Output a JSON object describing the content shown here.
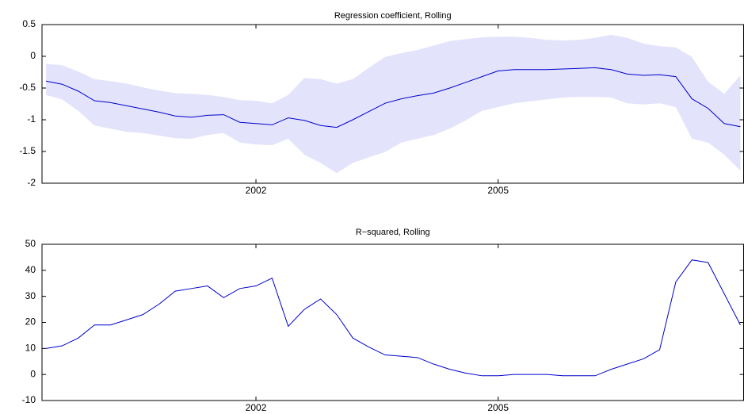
{
  "chart_data": [
    {
      "type": "band-line",
      "title": "Regression coefficient, Rolling",
      "x": [
        1999.4,
        1999.6,
        1999.8,
        2000.0,
        2000.2,
        2000.4,
        2000.6,
        2000.8,
        2001.0,
        2001.2,
        2001.4,
        2001.6,
        2001.8,
        2002.0,
        2002.2,
        2002.4,
        2002.6,
        2002.8,
        2003.0,
        2003.2,
        2003.4,
        2003.6,
        2003.8,
        2004.0,
        2004.2,
        2004.4,
        2004.6,
        2004.8,
        2005.0,
        2005.2,
        2005.4,
        2005.6,
        2005.8,
        2006.0,
        2006.2,
        2006.4,
        2006.6,
        2006.8,
        2007.0,
        2007.2,
        2007.4,
        2007.6,
        2007.8,
        2008.0
      ],
      "series": [
        {
          "color": "#0000cc",
          "values": [
            -0.39,
            -0.44,
            -0.55,
            -0.7,
            -0.73,
            -0.78,
            -0.83,
            -0.88,
            -0.94,
            -0.96,
            -0.93,
            -0.92,
            -1.04,
            -1.06,
            -1.08,
            -0.97,
            -1.01,
            -1.09,
            -1.12,
            -1.0,
            -0.87,
            -0.74,
            -0.67,
            -0.62,
            -0.58,
            -0.5,
            -0.41,
            -0.32,
            -0.23,
            -0.21,
            -0.21,
            -0.21,
            -0.2,
            -0.19,
            -0.18,
            -0.21,
            -0.28,
            -0.3,
            -0.29,
            -0.32,
            -0.67,
            -0.82,
            -1.06,
            -1.11
          ]
        }
      ],
      "band": {
        "color": "#e3e3fb",
        "upper": [
          -0.12,
          -0.14,
          -0.24,
          -0.36,
          -0.39,
          -0.43,
          -0.49,
          -0.54,
          -0.58,
          -0.59,
          -0.61,
          -0.64,
          -0.69,
          -0.7,
          -0.74,
          -0.61,
          -0.34,
          -0.36,
          -0.43,
          -0.36,
          -0.18,
          -0.01,
          0.05,
          0.1,
          0.17,
          0.24,
          0.27,
          0.3,
          0.31,
          0.31,
          0.29,
          0.26,
          0.25,
          0.26,
          0.29,
          0.34,
          0.29,
          0.2,
          0.16,
          0.14,
          -0.01,
          -0.4,
          -0.59,
          -0.3
        ],
        "lower": [
          -0.61,
          -0.68,
          -0.86,
          -1.09,
          -1.14,
          -1.19,
          -1.21,
          -1.25,
          -1.29,
          -1.3,
          -1.24,
          -1.21,
          -1.36,
          -1.39,
          -1.4,
          -1.3,
          -1.55,
          -1.68,
          -1.84,
          -1.68,
          -1.59,
          -1.51,
          -1.36,
          -1.3,
          -1.24,
          -1.14,
          -1.01,
          -0.86,
          -0.8,
          -0.74,
          -0.71,
          -0.68,
          -0.65,
          -0.64,
          -0.64,
          -0.65,
          -0.74,
          -0.76,
          -0.74,
          -0.8,
          -1.3,
          -1.36,
          -1.55,
          -1.8
        ]
      },
      "xlim": [
        1999.35,
        2008.04
      ],
      "xticks": [
        2002,
        2005
      ],
      "ylim": [
        -2,
        0.5
      ],
      "yticks": [
        -2,
        -1.5,
        -1,
        -0.5,
        0,
        0.5
      ]
    },
    {
      "type": "line",
      "title": "R−squared, Rolling",
      "x": [
        1999.4,
        1999.6,
        1999.8,
        2000.0,
        2000.2,
        2000.4,
        2000.6,
        2000.8,
        2001.0,
        2001.2,
        2001.4,
        2001.6,
        2001.8,
        2002.0,
        2002.2,
        2002.4,
        2002.6,
        2002.8,
        2003.0,
        2003.2,
        2003.4,
        2003.6,
        2003.8,
        2004.0,
        2004.2,
        2004.4,
        2004.6,
        2004.8,
        2005.0,
        2005.2,
        2005.4,
        2005.6,
        2005.8,
        2006.0,
        2006.2,
        2006.4,
        2006.6,
        2006.8,
        2007.0,
        2007.2,
        2007.4,
        2007.6,
        2007.8,
        2008.0
      ],
      "series": [
        {
          "color": "#0000cc",
          "values": [
            10,
            11,
            14,
            19,
            19,
            21,
            23,
            27,
            32,
            33,
            34,
            29.5,
            33,
            34,
            37,
            18.5,
            25,
            29,
            23,
            14,
            10.5,
            7.5,
            7,
            6.5,
            4,
            2,
            0.5,
            -0.5,
            -0.5,
            0,
            0,
            0,
            -0.5,
            -0.5,
            -0.5,
            2,
            4,
            6,
            9.5,
            35.5,
            44,
            43,
            31,
            19
          ]
        }
      ],
      "xlim": [
        1999.35,
        2008.04
      ],
      "xticks": [
        2002,
        2005
      ],
      "ylim": [
        -10,
        50
      ],
      "yticks": [
        -10,
        0,
        10,
        20,
        30,
        40,
        50
      ]
    }
  ]
}
